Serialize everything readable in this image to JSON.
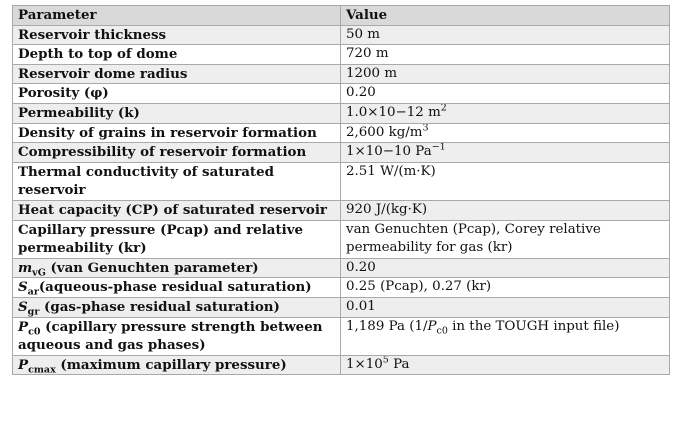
{
  "table": {
    "header": {
      "parameter": "Parameter",
      "value": "Value"
    },
    "rows": [
      {
        "p": "Reservoir thickness",
        "v": "50 m"
      },
      {
        "p": "Depth to top of dome",
        "v": "720 m"
      },
      {
        "p": "Reservoir dome radius",
        "v": "1200 m"
      },
      {
        "p": "Porosity (φ)",
        "v": "0.20"
      },
      {
        "p": "Permeability (k)",
        "v": "1.0×10−12 m",
        "v_sup": "2"
      },
      {
        "p": "Density of grains in reservoir formation",
        "v": "2,600 kg/m",
        "v_sup": "3"
      },
      {
        "p": "Compressibility of reservoir formation",
        "v": "1×10−10 Pa",
        "v_sup": "−1"
      },
      {
        "p": "Thermal conductivity of saturated reservoir",
        "v": "2.51 W/(m·K)"
      },
      {
        "p": "Heat capacity (CP) of saturated reservoir",
        "v": "920 J/(kg·K)"
      },
      {
        "p": "Capillary pressure (Pcap) and relative permeability (kr)",
        "v": "van Genuchten (Pcap), Corey relative permeability for gas (kr)"
      },
      {
        "p_sym": "m",
        "p_sub": "vG",
        "p_rest": " (van Genuchten parameter)",
        "v": "0.20"
      },
      {
        "p_sym": "S",
        "p_sub": "ar",
        "p_rest": "(aqueous-phase residual saturation)",
        "v": "0.25 (Pcap), 0.27 (kr)"
      },
      {
        "p_sym": "S",
        "p_sub": "gr",
        "p_rest": " (gas-phase residual saturation)",
        "v": "0.01"
      },
      {
        "p_sym": "P",
        "p_sub": "c0",
        "p_rest": " (capillary pressure strength between aqueous and gas phases)",
        "v_pre": "1,189 Pa (1/",
        "v_sym": "P",
        "v_sub": "c0",
        "v_post": " in the TOUGH input file)"
      },
      {
        "p_sym": "P",
        "p_sub": "cmax",
        "p_rest": " (maximum capillary pressure)",
        "v": "1×10",
        "v_sup": "5",
        "v_post": " Pa"
      }
    ]
  }
}
